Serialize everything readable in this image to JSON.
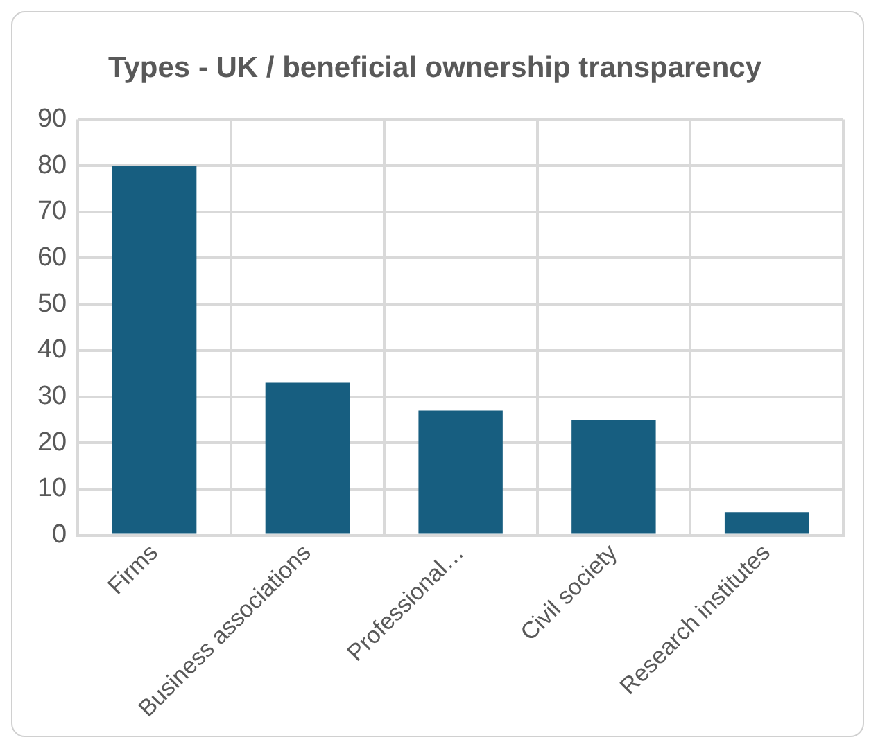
{
  "chart_data": {
    "type": "bar",
    "title": "Types - UK / beneficial ownership transparency",
    "categories": [
      "Firms",
      "Business associations",
      "Professional…",
      "Civil society",
      "Research institutes"
    ],
    "values": [
      80,
      33,
      27,
      25,
      5
    ],
    "color": "#175e80",
    "ylim": [
      0,
      90
    ],
    "yticks": [
      0,
      10,
      20,
      30,
      40,
      50,
      60,
      70,
      80,
      90
    ],
    "grid": true,
    "legend": false
  }
}
